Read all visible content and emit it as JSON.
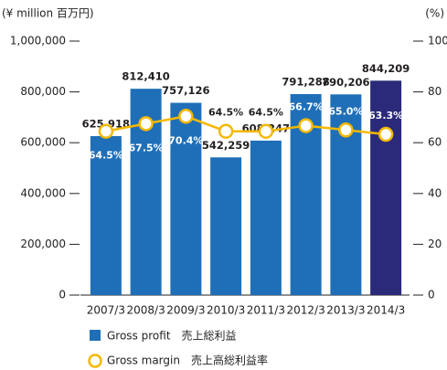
{
  "chart_data": {
    "type": "bar_line",
    "y_axis_label": "(¥ million  百万円)",
    "y2_axis_label": "(%)",
    "categories": [
      "2007/3",
      "2008/3",
      "2009/3",
      "2010/3",
      "2011/3",
      "2012/3",
      "2013/3",
      "2014/3"
    ],
    "series": [
      {
        "name": "Gross profit　売上総利益",
        "type": "bar",
        "color": "#1f6fb8",
        "colors": [
          "#1f6fb8",
          "#1f6fb8",
          "#1f6fb8",
          "#1f6fb8",
          "#1f6fb8",
          "#1f6fb8",
          "#1f6fb8",
          "#2b2a7a"
        ],
        "values": [
          625918,
          812410,
          757126,
          542259,
          608247,
          791288,
          790206,
          844209
        ],
        "value_labels": [
          "625,918",
          "812,410",
          "757,126",
          "542,259",
          "608,247",
          "791,288",
          "790,206",
          "844,209"
        ]
      },
      {
        "name": "Gross margin　売上高総利益率",
        "type": "line",
        "color": "#f5b800",
        "axis": "y2",
        "values": [
          64.5,
          67.5,
          70.4,
          64.5,
          64.5,
          66.7,
          65.0,
          63.3
        ],
        "value_labels": [
          "64.5%",
          "67.5%",
          "70.4%",
          "64.5%",
          "64.5%",
          "66.7%",
          "65.0%",
          "63.3%"
        ]
      }
    ],
    "ylim": [
      0,
      1000000
    ],
    "yticks": [
      0,
      {
        "value": 200000,
        "label": "200,000"
      },
      {
        "value": 400000,
        "label": "400,000"
      },
      {
        "value": 600000,
        "label": "600,000"
      },
      {
        "value": 800000,
        "label": "800,000"
      },
      {
        "value": 1000000,
        "label": "1,000,000"
      }
    ],
    "y2lim": [
      0,
      100
    ],
    "y2ticks": [
      0,
      20,
      40,
      60,
      80,
      100
    ]
  }
}
